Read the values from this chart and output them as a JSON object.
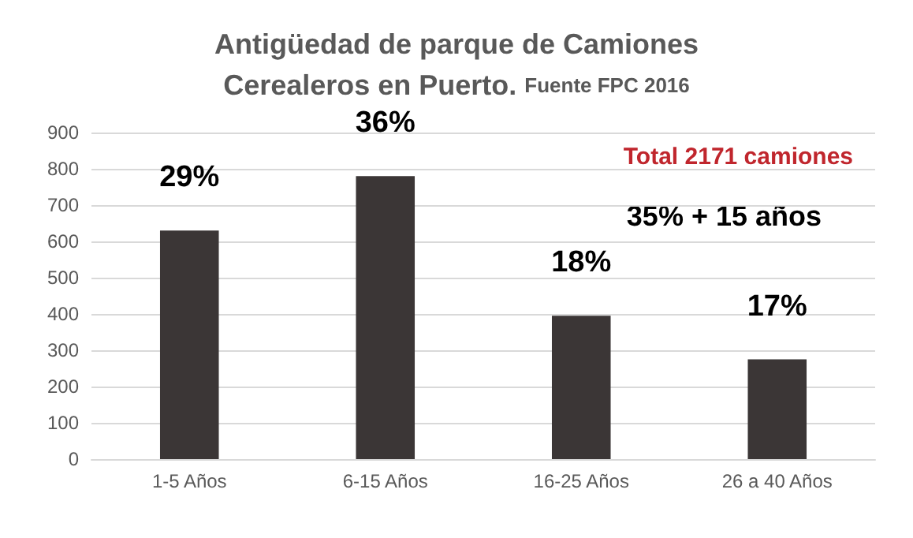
{
  "chart_data": {
    "type": "bar",
    "title": "Antigüedad de parque de Camiones Cerealeros en Puerto.",
    "subtitle": "Fuente FPC 2016",
    "categories": [
      "1-5 Años",
      "6-15 Años",
      "16-25 Años",
      "26 a 40 Años"
    ],
    "values": [
      630,
      780,
      395,
      275
    ],
    "color": "#3b3636",
    "annotations": [
      "Total 2171 camiones",
      "35% + 15 años",
      {
        "text": "29%",
        "x": "1-5 Años",
        "y": 630
      },
      {
        "text": "36%",
        "x": "6-15 Años",
        "y": 780
      },
      {
        "text": "18%",
        "x": "16-25 Años",
        "y": 395
      },
      {
        "text": "17%",
        "x": "26 a 40 Años",
        "y": 275
      }
    ],
    "ylim": [
      0,
      900
    ],
    "yticks": [
      0,
      100,
      200,
      300,
      400,
      500,
      600,
      700,
      800,
      900
    ],
    "grid": "y"
  }
}
